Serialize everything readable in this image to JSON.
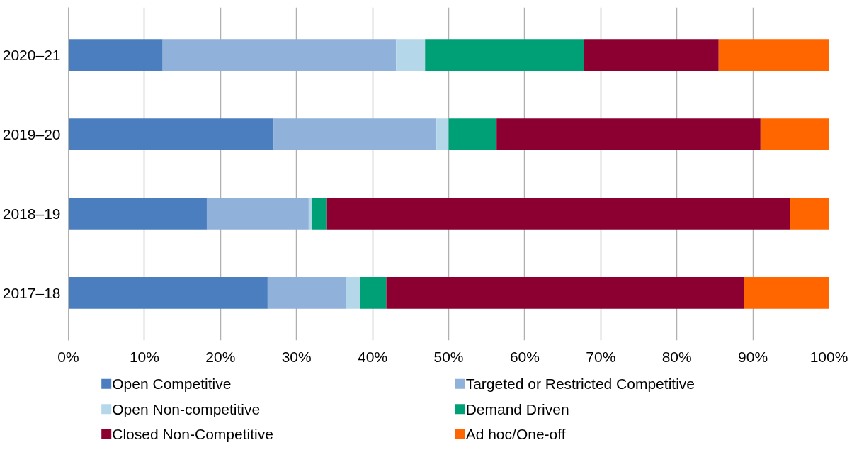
{
  "chart_data": {
    "type": "bar",
    "orientation": "horizontal",
    "stacked": true,
    "categories": [
      "2020–21",
      "2019–20",
      "2018–19",
      "2017–18"
    ],
    "series": [
      {
        "name": "Open Competitive",
        "color": "#4a7ebf",
        "values": [
          12.4,
          27.0,
          18.2,
          26.2
        ]
      },
      {
        "name": "Targeted or Restricted Competitive",
        "color": "#8fb1da",
        "values": [
          30.7,
          21.4,
          13.4,
          10.3
        ]
      },
      {
        "name": "Open Non-competitive",
        "color": "#b4d7ea",
        "values": [
          3.8,
          1.6,
          0.4,
          1.9
        ]
      },
      {
        "name": "Demand Driven",
        "color": "#00a076",
        "values": [
          20.9,
          6.3,
          2.0,
          3.4
        ]
      },
      {
        "name": "Closed Non-Competitive",
        "color": "#8b0030",
        "values": [
          17.7,
          34.7,
          60.9,
          47.0
        ]
      },
      {
        "name": "Ad hoc/One-off",
        "color": "#ff6600",
        "values": [
          14.5,
          9.0,
          5.1,
          11.2
        ]
      }
    ],
    "xlim": [
      0,
      100
    ],
    "xticks": [
      {
        "value": 0,
        "label": "0%"
      },
      {
        "value": 10,
        "label": "10%"
      },
      {
        "value": 20,
        "label": "20%"
      },
      {
        "value": 30,
        "label": "30%"
      },
      {
        "value": 40,
        "label": "40%"
      },
      {
        "value": 50,
        "label": "50%"
      },
      {
        "value": 60,
        "label": "60%"
      },
      {
        "value": 70,
        "label": "70%"
      },
      {
        "value": 80,
        "label": "80%"
      },
      {
        "value": 90,
        "label": "90%"
      },
      {
        "value": 100,
        "label": "100%"
      }
    ],
    "grid": "x",
    "legend": "bottom"
  }
}
